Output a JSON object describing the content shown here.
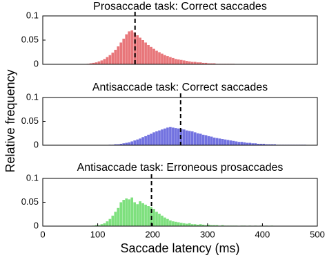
{
  "chart_data": [
    {
      "type": "histogram",
      "title": "Prosaccade task: Correct saccades",
      "color": "#e8767a",
      "bins": [
        80,
        85,
        90,
        95,
        100,
        105,
        110,
        115,
        120,
        125,
        130,
        135,
        140,
        145,
        150,
        155,
        160,
        165,
        170,
        175,
        180,
        185,
        190,
        195,
        200,
        205,
        210,
        215,
        220,
        225,
        230,
        235,
        240,
        245,
        250,
        255,
        260,
        265,
        270,
        275,
        280,
        285,
        290,
        295,
        300,
        305,
        310,
        315,
        320,
        325,
        330,
        335,
        340,
        345,
        350
      ],
      "counts": [
        0.001,
        0.002,
        0.003,
        0.004,
        0.006,
        0.008,
        0.011,
        0.015,
        0.019,
        0.024,
        0.03,
        0.037,
        0.045,
        0.053,
        0.062,
        0.068,
        0.07,
        0.066,
        0.06,
        0.055,
        0.05,
        0.045,
        0.04,
        0.036,
        0.032,
        0.028,
        0.025,
        0.022,
        0.019,
        0.017,
        0.015,
        0.013,
        0.011,
        0.01,
        0.009,
        0.008,
        0.007,
        0.006,
        0.005,
        0.005,
        0.004,
        0.004,
        0.003,
        0.003,
        0.002,
        0.002,
        0.002,
        0.001,
        0.001,
        0.001,
        0.001,
        0.001,
        0.001,
        0.001
      ],
      "vline": 168,
      "xlim": [
        0,
        500
      ],
      "ylim": [
        0,
        0.1
      ],
      "yticks": [
        0,
        0.05,
        0.1
      ]
    },
    {
      "type": "histogram",
      "title": "Antisaccade task: Correct saccades",
      "color": "#7272e0",
      "ylabel": "Relative frequency",
      "bins": [
        120,
        125,
        130,
        135,
        140,
        145,
        150,
        155,
        160,
        165,
        170,
        175,
        180,
        185,
        190,
        195,
        200,
        205,
        210,
        215,
        220,
        225,
        230,
        235,
        240,
        245,
        250,
        255,
        260,
        265,
        270,
        275,
        280,
        285,
        290,
        295,
        300,
        305,
        310,
        315,
        320,
        325,
        330,
        335,
        340,
        345,
        350,
        355,
        360,
        365,
        370,
        375,
        380,
        385,
        390,
        395,
        400,
        405,
        410,
        415,
        420,
        425,
        430,
        435,
        440,
        445,
        450,
        455,
        460,
        465,
        470,
        475,
        480
      ],
      "counts": [
        0.001,
        0.001,
        0.002,
        0.002,
        0.003,
        0.004,
        0.005,
        0.006,
        0.008,
        0.01,
        0.012,
        0.014,
        0.017,
        0.019,
        0.022,
        0.024,
        0.027,
        0.029,
        0.031,
        0.033,
        0.035,
        0.037,
        0.038,
        0.037,
        0.036,
        0.035,
        0.034,
        0.033,
        0.031,
        0.03,
        0.029,
        0.027,
        0.025,
        0.024,
        0.022,
        0.021,
        0.019,
        0.018,
        0.016,
        0.015,
        0.014,
        0.013,
        0.012,
        0.011,
        0.01,
        0.009,
        0.008,
        0.007,
        0.007,
        0.006,
        0.005,
        0.005,
        0.004,
        0.004,
        0.003,
        0.003,
        0.003,
        0.002,
        0.002,
        0.002,
        0.002,
        0.001,
        0.001,
        0.001,
        0.001,
        0.001,
        0.001,
        0.001,
        0.001,
        0.001,
        0.001,
        0.001
      ],
      "vline": 251,
      "xlim": [
        0,
        500
      ],
      "ylim": [
        0,
        0.1
      ],
      "yticks": [
        0,
        0.05,
        0.1
      ]
    },
    {
      "type": "histogram",
      "title": "Antisaccade task: Erroneous prosaccades",
      "color": "#7ee07e",
      "xlabel": "Saccade latency (ms)",
      "bins": [
        90,
        95,
        100,
        105,
        110,
        115,
        120,
        125,
        130,
        135,
        140,
        145,
        150,
        155,
        160,
        165,
        170,
        175,
        180,
        185,
        190,
        195,
        200,
        205,
        210,
        215,
        220,
        225,
        230,
        235,
        240,
        245,
        250,
        255,
        260,
        265,
        270,
        275,
        280,
        285,
        290,
        295,
        300,
        305,
        310,
        315,
        320,
        325,
        330,
        335,
        340,
        345,
        350,
        355,
        360,
        365,
        370,
        375,
        380,
        385,
        390,
        395,
        400,
        405,
        410,
        415,
        420
      ],
      "counts": [
        0.001,
        0.002,
        0.002,
        0.004,
        0.006,
        0.01,
        0.015,
        0.022,
        0.03,
        0.038,
        0.05,
        0.055,
        0.058,
        0.056,
        0.06,
        0.05,
        0.046,
        0.052,
        0.048,
        0.045,
        0.042,
        0.04,
        0.036,
        0.03,
        0.026,
        0.022,
        0.018,
        0.015,
        0.012,
        0.01,
        0.009,
        0.008,
        0.007,
        0.006,
        0.005,
        0.006,
        0.004,
        0.004,
        0.003,
        0.004,
        0.003,
        0.002,
        0.003,
        0.002,
        0.002,
        0.002,
        0.001,
        0.002,
        0.001,
        0.001,
        0.001,
        0.001,
        0.001,
        0,
        0.001,
        0.001,
        0,
        0.001,
        0,
        0.001,
        0,
        0.001,
        0,
        0.001,
        0,
        0.001
      ],
      "vline": 198,
      "xlim": [
        0,
        500
      ],
      "ylim": [
        0,
        0.1
      ],
      "yticks": [
        0,
        0.05,
        0.1
      ],
      "xticks": [
        0,
        100,
        200,
        300,
        400,
        500
      ]
    }
  ]
}
